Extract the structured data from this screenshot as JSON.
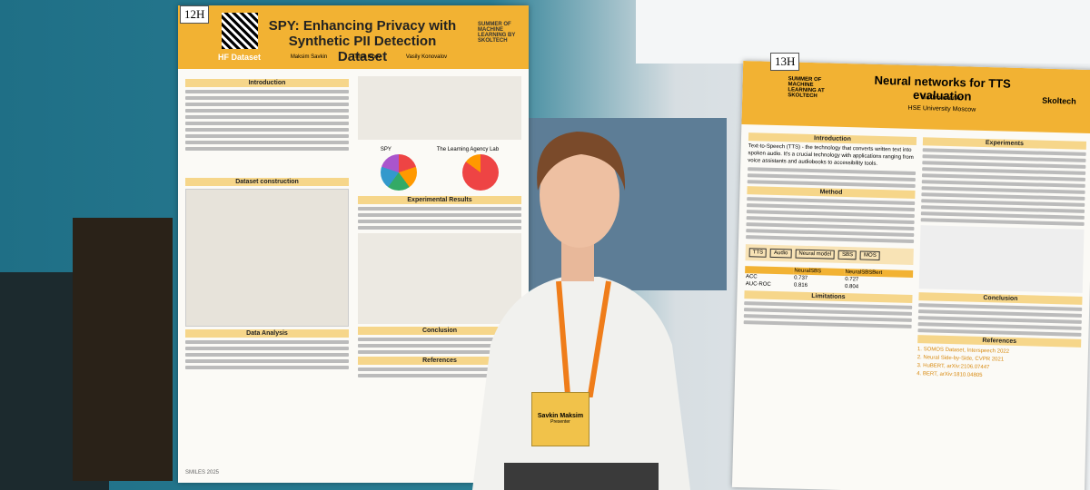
{
  "left_poster": {
    "board_label": "12H",
    "title": "SPY: Enhancing Privacy with Synthetic PII Detection Dataset",
    "dataset_link": "HF Dataset",
    "authors": [
      "Maksim Savkin",
      "Timur Ionov",
      "Vasily Konovalov"
    ],
    "school": "SUMMER OF MACHINE LEARNING BY SKOLTECH",
    "sections": [
      "Introduction",
      "Dataset construction",
      "Data Analysis",
      "Experimental Results",
      "Conclusion",
      "References"
    ],
    "chart_captions": [
      "SPY",
      "The Learning Agency Lab"
    ],
    "footer": "SMILES 2025"
  },
  "right_poster": {
    "board_label": "13H",
    "sponsor": "Skoltech",
    "school": "SUMMER OF MACHINE LEARNING AT SKOLTECH",
    "title": "Neural networks for TTS evaluation",
    "author": "Ilia Trofimenko",
    "affiliation": "HSE University Moscow",
    "sections_left": [
      "Introduction",
      "Method",
      "Limitations"
    ],
    "sections_right": [
      "Experiments",
      "Conclusion",
      "References"
    ],
    "intro_text": "Text-to-Speech (TTS) - the technology that converts written text into spoken audio. It's a crucial technology with applications ranging from voice assistants and audiobooks to accessibility tools.",
    "diagram_labels": [
      "TTS",
      "Audio",
      "Neural model",
      "SBS",
      "MOS"
    ],
    "table": {
      "header": [
        "",
        "NeuralSBS",
        "NeuralSBSBert"
      ],
      "rows": [
        [
          "ACC",
          "0.737",
          "0.727"
        ],
        [
          "AUC-ROC",
          "0.816",
          "0.804"
        ]
      ]
    },
    "refs": [
      "1. SOMOS Dataset, Interspeech 2022",
      "2. Neural Side-by-Side, CVPR 2021",
      "3. HuBERT, arXiv:2106.07447",
      "4. BERT, arXiv:1810.04805"
    ]
  },
  "badge": {
    "name": "Savkin Maksim",
    "role": "Presenter"
  }
}
